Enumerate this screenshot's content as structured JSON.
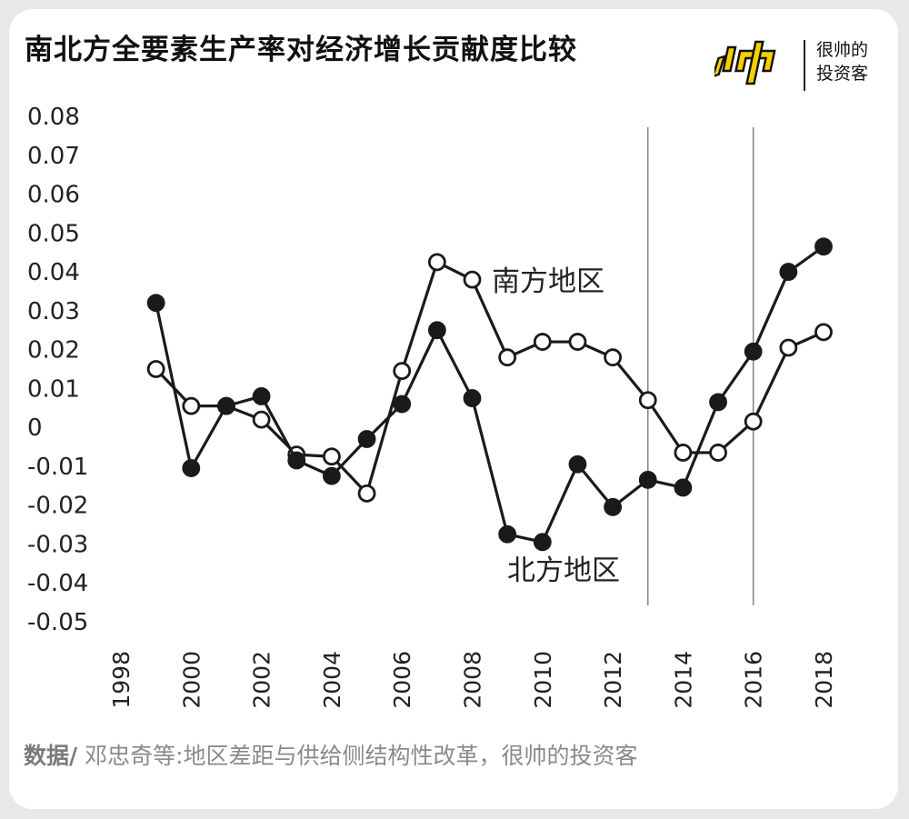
{
  "header": {
    "title": "南北方全要素生产率对经济增长贡献度比较",
    "brand_line1": "很帅的",
    "brand_line2": "投资客",
    "logo_icon": "shuai-glyph-logo",
    "logo_color": "#f5d000"
  },
  "footer": {
    "label": "数据/",
    "source": "邓忠奇等:地区差距与供给侧结构性改革，很帅的投资客"
  },
  "chart_data": {
    "type": "line",
    "title": "南北方全要素生产率对经济增长贡献度比较",
    "xlabel": "",
    "ylabel": "",
    "x": [
      1999,
      2000,
      2001,
      2002,
      2003,
      2004,
      2005,
      2006,
      2007,
      2008,
      2009,
      2010,
      2011,
      2012,
      2013,
      2014,
      2015,
      2016,
      2017,
      2018
    ],
    "xticks": [
      "1998",
      "2000",
      "2002",
      "2004",
      "2006",
      "2008",
      "2010",
      "2012",
      "2014",
      "2016",
      "2018"
    ],
    "xlim": [
      1998,
      2018
    ],
    "yticks": [
      "0.08",
      "0.07",
      "0.06",
      "0.05",
      "0.04",
      "0.03",
      "0.02",
      "0.01",
      "0",
      "-0.01",
      "-0.02",
      "-0.03",
      "-0.04",
      "-0.05"
    ],
    "ylim": [
      -0.05,
      0.08
    ],
    "grid": false,
    "vlines": [
      2013,
      2016
    ],
    "series": [
      {
        "name": "南方地区",
        "marker": "open-circle",
        "color": "#1a1a1a",
        "values": [
          0.015,
          0.0055,
          0.0055,
          0.002,
          -0.007,
          -0.0075,
          -0.017,
          0.0145,
          0.0425,
          0.038,
          0.018,
          0.022,
          0.022,
          0.018,
          0.007,
          -0.0065,
          -0.0065,
          0.0015,
          0.0205,
          0.0245
        ]
      },
      {
        "name": "北方地区",
        "marker": "filled-circle",
        "color": "#1a1a1a",
        "values": [
          0.032,
          -0.0105,
          0.0055,
          0.008,
          -0.0085,
          -0.0125,
          -0.003,
          0.006,
          0.025,
          0.0075,
          -0.0275,
          -0.0295,
          -0.0095,
          -0.0205,
          -0.0135,
          -0.0155,
          0.0065,
          0.0195,
          0.04,
          0.0465
        ]
      }
    ],
    "annotations": [
      {
        "text": "南方地区",
        "series": "南方地区"
      },
      {
        "text": "北方地区",
        "series": "北方地区"
      }
    ]
  }
}
